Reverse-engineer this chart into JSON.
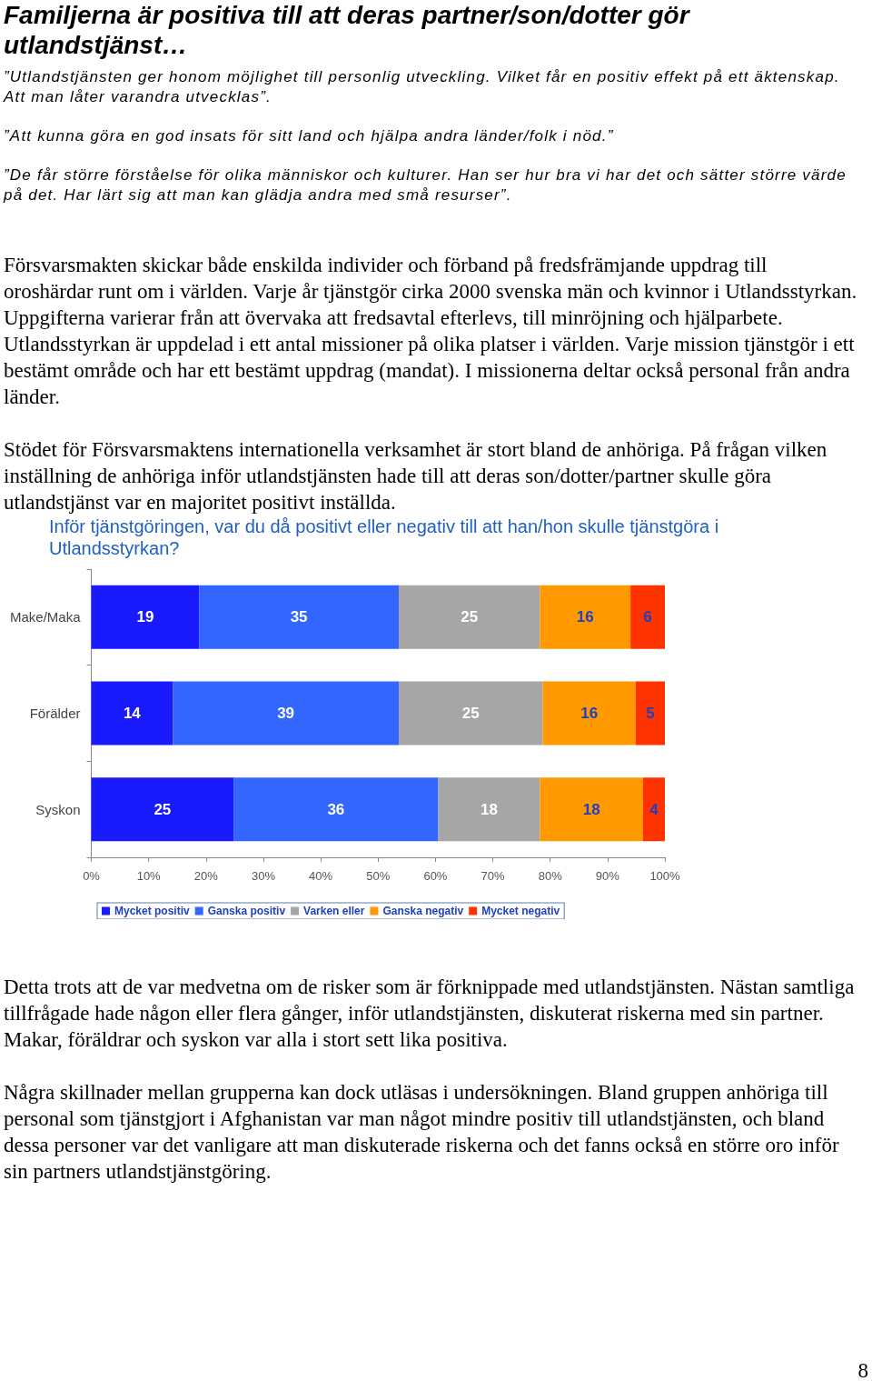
{
  "chart_data": {
    "type": "bar",
    "orientation": "horizontal",
    "stacked": true,
    "title": "Familjerna är positiva till att deras partner/son/dotter gör utlandstjänst…",
    "subtitle": "Inför tjänstgöringen, var du då positivt eller negativ till att han/hon skulle tjänstgöra i Utlandsstyrkan?",
    "categories": [
      "Make/Maka",
      "Förälder",
      "Syskon"
    ],
    "series": [
      {
        "name": "Mycket positiv",
        "color": "#1a1aff",
        "values": [
          18.8,
          14.2,
          24.8
        ],
        "value_labels": [
          "19",
          "14",
          "25"
        ]
      },
      {
        "name": "Ganska positiv",
        "color": "#3366ff",
        "values": [
          34.8,
          39.4,
          35.7
        ],
        "value_labels": [
          "35",
          "39",
          "36"
        ]
      },
      {
        "name": "Varken eller",
        "color": "#a6a6a6",
        "values": [
          24.6,
          25.1,
          17.7
        ],
        "value_labels": [
          "25",
          "25",
          "18"
        ]
      },
      {
        "name": "Ganska negativ",
        "color": "#ff9900",
        "values": [
          15.8,
          16.2,
          18
        ],
        "value_labels": [
          "16",
          "16",
          "18"
        ]
      },
      {
        "name": "Mycket negativ",
        "color": "#ff3300",
        "values": [
          6,
          5.1,
          3.8
        ],
        "value_labels": [
          "6",
          "5",
          "4"
        ]
      }
    ],
    "xlim": [
      0,
      100
    ],
    "xticks": [
      {
        "value": 0,
        "label": "0%"
      },
      {
        "value": 10,
        "label": "10%"
      },
      {
        "value": 20,
        "label": "20%"
      },
      {
        "value": 30,
        "label": "30%"
      },
      {
        "value": 40,
        "label": "40%"
      },
      {
        "value": 50,
        "label": "50%"
      },
      {
        "value": 60,
        "label": "60%"
      },
      {
        "value": 70,
        "label": "70%"
      },
      {
        "value": 80,
        "label": "80%"
      },
      {
        "value": 90,
        "label": "90%"
      },
      {
        "value": 100,
        "label": "100%"
      }
    ],
    "grid": false,
    "legend": "bottom",
    "annotations": [
      "”Utlandstjänsten ger honom möjlighet till personlig utveckling. Vilket får en positiv effekt på ett äktenskap. Att man låter varandra utvecklas”.",
      "”Att kunna göra en god insats för sitt land och hjälpa andra länder/folk i nöd.”",
      "”De får större förståelse för olika människor och kulturer. Han ser hur bra vi har det och sätter större värde på det. Har lärt sig att man kan glädja andra med små resurser”.",
      "Försvarsmakten skickar både enskilda individer och förband på fredsfrämjande uppdrag till oroshärdar runt om i världen. Varje år tjänstgör cirka 2000 svenska män och kvinnor i Utlandsstyrkan. Uppgifterna varierar från att övervaka att fredsavtal efterlevs, till minröjning och hjälparbete. Utlandsstyrkan är uppdelad i ett antal missioner på olika platser i världen. Varje mission tjänstgör i ett bestämt område och har ett bestämt uppdrag (mandat). I missionerna deltar också personal från andra länder.",
      "Stödet för Försvarsmaktens internationella verksamhet är stort bland de anhöriga. På frågan vilken inställning de anhöriga inför utlandstjänsten hade till att deras son/dotter/partner skulle göra utlandstjänst var en majoritet positivt inställda.",
      "Detta trots att de var medvetna om de risker som är förknippade med utlandstjänsten. Nästan samtliga tillfrågade hade någon eller flera gånger, inför utlandstjänsten, diskuterat riskerna med sin partner. Makar, föräldrar och syskon var alla i stort sett lika positiva.",
      "Några skillnader mellan grupperna kan dock utläsas i undersökningen. Bland gruppen anhöriga till personal som tjänstgjort i Afghanistan var man något mindre positiv till utlandstjänsten, och bland dessa personer var det vanligare att man diskuterade riskerna och det fanns också en större oro inför sin partners utlandstjänstgöring.",
      "8"
    ]
  }
}
